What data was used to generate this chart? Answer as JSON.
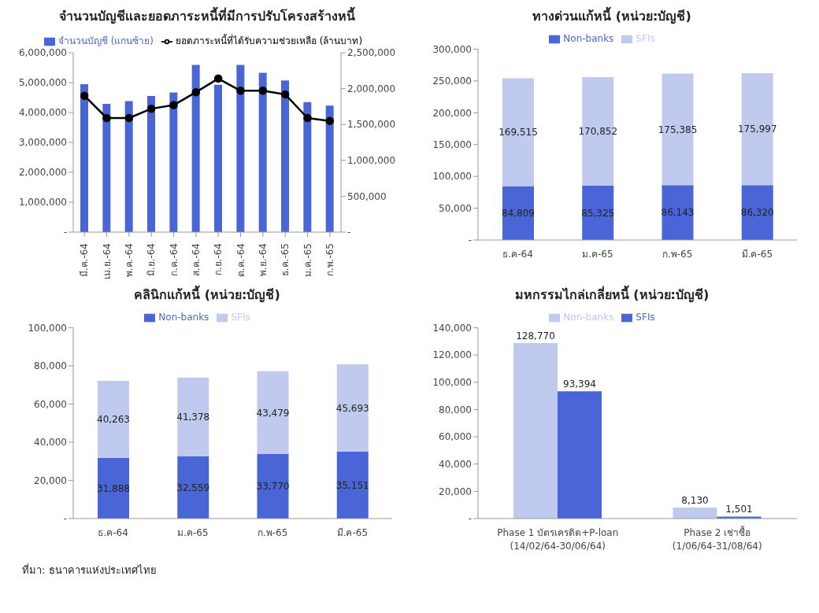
{
  "chart_data": [
    {
      "type": "bar",
      "title": "จำนวนบัญชีและยอดภาระหนี้ที่มีการปรับโครงสร้างหนี้",
      "categories": [
        "มี.ค.-64",
        "เม.ย.-64",
        "พ.ค.-64",
        "มิ.ย.-64",
        "ก.ค.-64",
        "ส.ค.-64",
        "ก.ย.-64",
        "ต.ค.-64",
        "พ.ย.-64",
        "ธ.ค.-65",
        "ม.ค.-65",
        "ก.พ.-65"
      ],
      "series": [
        {
          "name": "จำนวนบัญชี (แกนซ้าย)",
          "color": "#4a66d6",
          "values": [
            4950000,
            4290000,
            4380000,
            4550000,
            4670000,
            5590000,
            4930000,
            5590000,
            5330000,
            5070000,
            4350000,
            4230000
          ]
        },
        {
          "name": "ยอดภาระหนี้ที่ได้รับความช่วยเหลือ (ล้านบาท)",
          "type": "line",
          "axis": "y2",
          "color": "#000000",
          "marker": "circle",
          "values": [
            1900000,
            1590000,
            1590000,
            1720000,
            1770000,
            1950000,
            2140000,
            1970000,
            1970000,
            1920000,
            1590000,
            1550000
          ]
        }
      ],
      "ylim": [
        0,
        6000000
      ],
      "yticks": [
        {
          "value": 0,
          "label": "-"
        },
        {
          "value": 1000000,
          "label": "1,000,000"
        },
        {
          "value": 2000000,
          "label": "2,000,000"
        },
        {
          "value": 3000000,
          "label": "3,000,000"
        },
        {
          "value": 4000000,
          "label": "4,000,000"
        },
        {
          "value": 5000000,
          "label": "5,000,000"
        },
        {
          "value": 6000000,
          "label": "6,000,000"
        }
      ],
      "y2lim": [
        0,
        2500000
      ],
      "y2ticks": [
        {
          "value": 0,
          "label": "-"
        },
        {
          "value": 500000,
          "label": "500,000"
        },
        {
          "value": 1000000,
          "label": "1,000,000"
        },
        {
          "value": 1500000,
          "label": "1,500,000"
        },
        {
          "value": 2000000,
          "label": "2,000,000"
        },
        {
          "value": 2500000,
          "label": "2,500,000"
        }
      ],
      "legend": "top"
    },
    {
      "type": "bar",
      "title": "ทางด่วนแก้หนี้ (หน่วย:บัญชี)",
      "categories": [
        "ธ.ค-64",
        "ม.ค-65",
        "ก.พ-65",
        "มี.ค-65"
      ],
      "stacked": true,
      "series": [
        {
          "name": "Non-banks",
          "color": "#4a66d6",
          "values": [
            84809,
            85325,
            86143,
            86320
          ],
          "value_labels": [
            "84,809",
            "85,325",
            "86,143",
            "86,320"
          ]
        },
        {
          "name": "SFIs",
          "color": "#bfcaee",
          "values": [
            169515,
            170852,
            175385,
            175997
          ],
          "value_labels": [
            "169,515",
            "170,852",
            "175,385",
            "175,997"
          ]
        }
      ],
      "ylim": [
        0,
        300000
      ],
      "yticks": [
        {
          "value": 0,
          "label": "-"
        },
        {
          "value": 50000,
          "label": "50,000"
        },
        {
          "value": 100000,
          "label": "100,000"
        },
        {
          "value": 150000,
          "label": "150,000"
        },
        {
          "value": 200000,
          "label": "200,000"
        },
        {
          "value": 250000,
          "label": "250,000"
        },
        {
          "value": 300000,
          "label": "300,000"
        }
      ],
      "legend": "top"
    },
    {
      "type": "bar",
      "title": "คลินิกแก้หนี้ (หน่วย:บัญชี)",
      "categories": [
        "ธ.ค-64",
        "ม.ค-65",
        "ก.พ-65",
        "มี.ค-65"
      ],
      "stacked": true,
      "series": [
        {
          "name": "Non-banks",
          "color": "#4a66d6",
          "values": [
            31888,
            32559,
            33770,
            35151
          ],
          "value_labels": [
            "31,888",
            "32,559",
            "33,770",
            "35,151"
          ]
        },
        {
          "name": "SFIs",
          "color": "#bfcaee",
          "values": [
            40263,
            41378,
            43479,
            45693
          ],
          "value_labels": [
            "40,263",
            "41,378",
            "43,479",
            "45,693"
          ]
        }
      ],
      "ylim": [
        0,
        100000
      ],
      "yticks": [
        {
          "value": 0,
          "label": "-"
        },
        {
          "value": 20000,
          "label": "20,000"
        },
        {
          "value": 40000,
          "label": "40,000"
        },
        {
          "value": 60000,
          "label": "60,000"
        },
        {
          "value": 80000,
          "label": "80,000"
        },
        {
          "value": 100000,
          "label": "100,000"
        }
      ],
      "legend": "top",
      "annotations": [
        "ที่มา: ธนาคารแห่งประเทศไทย"
      ]
    },
    {
      "type": "bar",
      "title": "มหกรรมไกล่เกลี่ยหนี้ (หน่วย:บัญชี)",
      "categories": [
        "Phase 1 บัตรเครดิต+P-loan (14/02/64-30/06/64)",
        "Phase 2 เช่าซื้อ (1/06/64-31/08/64)"
      ],
      "series": [
        {
          "name": "Non-banks",
          "color": "#bfcaee",
          "values": [
            128770,
            8130
          ],
          "value_labels": [
            "128,770",
            "8,130"
          ]
        },
        {
          "name": "SFIs",
          "color": "#4a66d6",
          "values": [
            93394,
            1501
          ],
          "value_labels": [
            "93,394",
            "1,501"
          ]
        }
      ],
      "ylim": [
        0,
        140000
      ],
      "yticks": [
        {
          "value": 0,
          "label": "-"
        },
        {
          "value": 20000,
          "label": "20,000"
        },
        {
          "value": 40000,
          "label": "40,000"
        },
        {
          "value": 60000,
          "label": "60,000"
        },
        {
          "value": 80000,
          "label": "80,000"
        },
        {
          "value": 100000,
          "label": "100,000"
        },
        {
          "value": 120000,
          "label": "120,000"
        },
        {
          "value": 140000,
          "label": "140,000"
        }
      ],
      "legend": "top"
    }
  ]
}
